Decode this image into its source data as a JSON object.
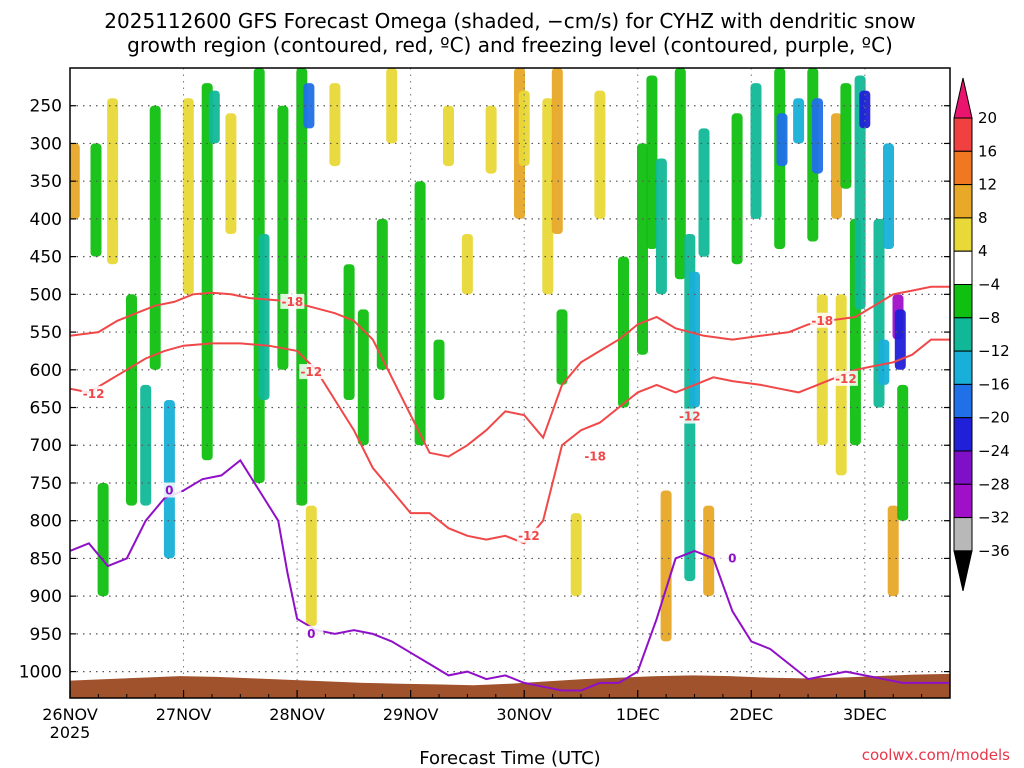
{
  "chart_data": {
    "type": "heatmap",
    "title_line1": "2025112600 GFS Forecast Omega (shaded, −cm/s) for CYHZ with dendritic snow",
    "title_line2": "growth region (contoured, red, ºC) and freezing level (contoured, purple, ºC)",
    "xlabel": "Forecast Time (UTC)",
    "credit": "coolwx.com/models",
    "x_ticks": [
      {
        "label": "26NOV",
        "sub": "2025",
        "hour": 0
      },
      {
        "label": "27NOV",
        "sub": "",
        "hour": 24
      },
      {
        "label": "28NOV",
        "sub": "",
        "hour": 48
      },
      {
        "label": "29NOV",
        "sub": "",
        "hour": 72
      },
      {
        "label": "30NOV",
        "sub": "",
        "hour": 96
      },
      {
        "label": "1DEC",
        "sub": "",
        "hour": 120
      },
      {
        "label": "2DEC",
        "sub": "",
        "hour": 144
      },
      {
        "label": "3DEC",
        "sub": "",
        "hour": 168
      }
    ],
    "x_range_hours": [
      0,
      186
    ],
    "y_ticks": [
      "250",
      "300",
      "350",
      "400",
      "450",
      "500",
      "550",
      "600",
      "650",
      "700",
      "750",
      "800",
      "850",
      "900",
      "950",
      "1000"
    ],
    "y_range_hpa": [
      200,
      1035
    ],
    "colorbar": {
      "labels": [
        "20",
        "16",
        "12",
        "8",
        "4",
        "−4",
        "−8",
        "−12",
        "−16",
        "−20",
        "−24",
        "−28",
        "−32",
        "−36"
      ],
      "colors": [
        "#e8146e",
        "#f04040",
        "#f07820",
        "#e8a828",
        "#e8d838",
        "#ffffff",
        "#10c010",
        "#10b898",
        "#18b0d8",
        "#2070e8",
        "#2020d8",
        "#8010c8",
        "#a010c8",
        "#b8b8b8",
        "#000000"
      ]
    },
    "omega_blobs": [
      {
        "h": 0.9,
        "p0": 300,
        "p1": 400,
        "v": 8
      },
      {
        "h": 5.5,
        "p0": 300,
        "p1": 450,
        "v": -8
      },
      {
        "h": 7,
        "p0": 750,
        "p1": 900,
        "v": -8
      },
      {
        "h": 9,
        "p0": 240,
        "p1": 460,
        "v": 4
      },
      {
        "h": 13,
        "p0": 500,
        "p1": 780,
        "v": -8
      },
      {
        "h": 16,
        "p0": 620,
        "p1": 780,
        "v": -12
      },
      {
        "h": 18,
        "p0": 250,
        "p1": 600,
        "v": -8
      },
      {
        "h": 21,
        "p0": 640,
        "p1": 850,
        "v": -16
      },
      {
        "h": 25,
        "p0": 240,
        "p1": 500,
        "v": 4
      },
      {
        "h": 29,
        "p0": 220,
        "p1": 720,
        "v": -8
      },
      {
        "h": 30.5,
        "p0": 230,
        "p1": 300,
        "v": -12
      },
      {
        "h": 34,
        "p0": 260,
        "p1": 420,
        "v": 4
      },
      {
        "h": 40,
        "p0": 200,
        "p1": 750,
        "v": -8
      },
      {
        "h": 41,
        "p0": 420,
        "p1": 640,
        "v": -12
      },
      {
        "h": 45,
        "p0": 250,
        "p1": 600,
        "v": -8
      },
      {
        "h": 49,
        "p0": 200,
        "p1": 780,
        "v": -8
      },
      {
        "h": 50.5,
        "p0": 220,
        "p1": 280,
        "v": -20
      },
      {
        "h": 51,
        "p0": 780,
        "p1": 940,
        "v": 4
      },
      {
        "h": 56,
        "p0": 220,
        "p1": 330,
        "v": 4
      },
      {
        "h": 59,
        "p0": 460,
        "p1": 640,
        "v": -8
      },
      {
        "h": 62,
        "p0": 520,
        "p1": 700,
        "v": -8
      },
      {
        "h": 66,
        "p0": 400,
        "p1": 600,
        "v": -8
      },
      {
        "h": 68,
        "p0": 200,
        "p1": 300,
        "v": 4
      },
      {
        "h": 74,
        "p0": 350,
        "p1": 700,
        "v": -8
      },
      {
        "h": 78,
        "p0": 560,
        "p1": 640,
        "v": -8
      },
      {
        "h": 80,
        "p0": 250,
        "p1": 330,
        "v": 4
      },
      {
        "h": 84,
        "p0": 420,
        "p1": 500,
        "v": 4
      },
      {
        "h": 89,
        "p0": 250,
        "p1": 340,
        "v": 4
      },
      {
        "h": 95,
        "p0": 200,
        "p1": 400,
        "v": 8
      },
      {
        "h": 96,
        "p0": 230,
        "p1": 330,
        "v": 4
      },
      {
        "h": 101,
        "p0": 240,
        "p1": 500,
        "v": 4
      },
      {
        "h": 103,
        "p0": 200,
        "p1": 420,
        "v": 8
      },
      {
        "h": 104,
        "p0": 520,
        "p1": 620,
        "v": -8
      },
      {
        "h": 107,
        "p0": 790,
        "p1": 900,
        "v": 4
      },
      {
        "h": 112,
        "p0": 230,
        "p1": 400,
        "v": 4
      },
      {
        "h": 117,
        "p0": 450,
        "p1": 650,
        "v": -8
      },
      {
        "h": 121,
        "p0": 300,
        "p1": 580,
        "v": -8
      },
      {
        "h": 123,
        "p0": 210,
        "p1": 440,
        "v": -8
      },
      {
        "h": 125,
        "p0": 320,
        "p1": 500,
        "v": -12
      },
      {
        "h": 126,
        "p0": 760,
        "p1": 960,
        "v": 8
      },
      {
        "h": 129,
        "p0": 200,
        "p1": 480,
        "v": -8
      },
      {
        "h": 131,
        "p0": 420,
        "p1": 880,
        "v": -12
      },
      {
        "h": 132,
        "p0": 470,
        "p1": 650,
        "v": -16
      },
      {
        "h": 134,
        "p0": 280,
        "p1": 450,
        "v": -12
      },
      {
        "h": 135,
        "p0": 780,
        "p1": 900,
        "v": 8
      },
      {
        "h": 141,
        "p0": 260,
        "p1": 460,
        "v": -8
      },
      {
        "h": 145,
        "p0": 220,
        "p1": 400,
        "v": -12
      },
      {
        "h": 150,
        "p0": 200,
        "p1": 440,
        "v": -8
      },
      {
        "h": 150.5,
        "p0": 260,
        "p1": 330,
        "v": -20
      },
      {
        "h": 154,
        "p0": 240,
        "p1": 300,
        "v": -16
      },
      {
        "h": 157,
        "p0": 200,
        "p1": 430,
        "v": -8
      },
      {
        "h": 158,
        "p0": 240,
        "p1": 340,
        "v": -20
      },
      {
        "h": 159,
        "p0": 500,
        "p1": 700,
        "v": 4
      },
      {
        "h": 162,
        "p0": 260,
        "p1": 400,
        "v": 8
      },
      {
        "h": 163,
        "p0": 500,
        "p1": 740,
        "v": 4
      },
      {
        "h": 164,
        "p0": 220,
        "p1": 360,
        "v": -8
      },
      {
        "h": 166,
        "p0": 400,
        "p1": 700,
        "v": -8
      },
      {
        "h": 167,
        "p0": 210,
        "p1": 520,
        "v": -12
      },
      {
        "h": 168,
        "p0": 230,
        "p1": 280,
        "v": -24
      },
      {
        "h": 171,
        "p0": 400,
        "p1": 650,
        "v": -12
      },
      {
        "h": 172,
        "p0": 560,
        "p1": 620,
        "v": -16
      },
      {
        "h": 173,
        "p0": 300,
        "p1": 440,
        "v": -16
      },
      {
        "h": 174,
        "p0": 780,
        "p1": 900,
        "v": 8
      },
      {
        "h": 175,
        "p0": 500,
        "p1": 560,
        "v": -32
      },
      {
        "h": 175.5,
        "p0": 520,
        "p1": 600,
        "v": -24
      },
      {
        "h": 176,
        "p0": 620,
        "p1": 800,
        "v": -8
      }
    ],
    "dgz_series": [
      {
        "name": "-18",
        "color": "#f04848",
        "label_x": [
          47,
          111,
          159
        ],
        "label_p": [
          510,
          715,
          535
        ],
        "points": [
          [
            0,
            555
          ],
          [
            6,
            550
          ],
          [
            10,
            535
          ],
          [
            14,
            525
          ],
          [
            18,
            515
          ],
          [
            22,
            510
          ],
          [
            26,
            500
          ],
          [
            30,
            498
          ],
          [
            34,
            500
          ],
          [
            38,
            505
          ],
          [
            44,
            508
          ],
          [
            50,
            515
          ],
          [
            56,
            525
          ],
          [
            60,
            535
          ],
          [
            64,
            560
          ],
          [
            68,
            610
          ],
          [
            72,
            660
          ],
          [
            76,
            710
          ],
          [
            80,
            715
          ],
          [
            84,
            700
          ],
          [
            88,
            680
          ],
          [
            92,
            655
          ],
          [
            96,
            660
          ],
          [
            100,
            690
          ],
          [
            104,
            620
          ],
          [
            108,
            590
          ],
          [
            112,
            575
          ],
          [
            116,
            560
          ],
          [
            120,
            540
          ],
          [
            124,
            530
          ],
          [
            128,
            545
          ],
          [
            134,
            555
          ],
          [
            140,
            560
          ],
          [
            146,
            555
          ],
          [
            152,
            550
          ],
          [
            156,
            540
          ],
          [
            160,
            535
          ],
          [
            166,
            530
          ],
          [
            170,
            515
          ],
          [
            174,
            500
          ],
          [
            178,
            495
          ],
          [
            182,
            490
          ],
          [
            186,
            490
          ]
        ]
      },
      {
        "name": "-12",
        "color": "#f04848",
        "label_x": [
          5,
          51,
          97,
          131,
          164
        ],
        "label_p": [
          632,
          603,
          820,
          662,
          612
        ],
        "points": [
          [
            0,
            625
          ],
          [
            4,
            630
          ],
          [
            8,
            615
          ],
          [
            12,
            600
          ],
          [
            16,
            585
          ],
          [
            20,
            575
          ],
          [
            24,
            568
          ],
          [
            30,
            565
          ],
          [
            36,
            565
          ],
          [
            42,
            568
          ],
          [
            48,
            575
          ],
          [
            52,
            600
          ],
          [
            56,
            640
          ],
          [
            60,
            680
          ],
          [
            64,
            730
          ],
          [
            68,
            760
          ],
          [
            72,
            790
          ],
          [
            76,
            790
          ],
          [
            80,
            810
          ],
          [
            84,
            820
          ],
          [
            88,
            825
          ],
          [
            92,
            820
          ],
          [
            96,
            830
          ],
          [
            100,
            800
          ],
          [
            104,
            700
          ],
          [
            108,
            680
          ],
          [
            112,
            670
          ],
          [
            116,
            650
          ],
          [
            120,
            630
          ],
          [
            124,
            620
          ],
          [
            128,
            630
          ],
          [
            132,
            620
          ],
          [
            136,
            610
          ],
          [
            140,
            615
          ],
          [
            146,
            620
          ],
          [
            150,
            625
          ],
          [
            154,
            630
          ],
          [
            158,
            620
          ],
          [
            162,
            610
          ],
          [
            166,
            600
          ],
          [
            170,
            595
          ],
          [
            174,
            590
          ],
          [
            178,
            580
          ],
          [
            182,
            560
          ],
          [
            186,
            560
          ]
        ]
      }
    ],
    "freezing_series": [
      {
        "name": "0",
        "color": "#9010c8",
        "label_x": [
          21,
          51,
          140
        ],
        "label_p": [
          760,
          950,
          850
        ],
        "points": [
          [
            0,
            840
          ],
          [
            4,
            830
          ],
          [
            8,
            860
          ],
          [
            12,
            850
          ],
          [
            16,
            800
          ],
          [
            20,
            770
          ],
          [
            24,
            760
          ],
          [
            28,
            745
          ],
          [
            32,
            740
          ],
          [
            36,
            720
          ],
          [
            40,
            760
          ],
          [
            44,
            800
          ],
          [
            46,
            870
          ],
          [
            48,
            930
          ],
          [
            52,
            945
          ],
          [
            56,
            950
          ],
          [
            60,
            945
          ],
          [
            64,
            950
          ],
          [
            68,
            960
          ],
          [
            72,
            975
          ],
          [
            76,
            990
          ],
          [
            80,
            1005
          ],
          [
            84,
            1000
          ],
          [
            88,
            1010
          ],
          [
            92,
            1005
          ],
          [
            96,
            1015
          ],
          [
            100,
            1020
          ],
          [
            104,
            1025
          ],
          [
            108,
            1025
          ],
          [
            112,
            1015
          ],
          [
            116,
            1015
          ],
          [
            120,
            1000
          ],
          [
            124,
            930
          ],
          [
            128,
            850
          ],
          [
            132,
            840
          ],
          [
            136,
            850
          ],
          [
            140,
            920
          ],
          [
            144,
            960
          ],
          [
            148,
            970
          ],
          [
            152,
            990
          ],
          [
            156,
            1010
          ],
          [
            160,
            1005
          ],
          [
            164,
            1000
          ],
          [
            168,
            1005
          ],
          [
            172,
            1010
          ],
          [
            176,
            1015
          ],
          [
            180,
            1015
          ],
          [
            186,
            1015
          ]
        ]
      }
    ],
    "surface": {
      "color": "#a0522d",
      "pressures": [
        1012,
        1010,
        1008,
        1006,
        1007,
        1009,
        1011,
        1013,
        1015,
        1016,
        1017,
        1018,
        1016,
        1013,
        1010,
        1008,
        1006,
        1005,
        1006,
        1008,
        1009,
        1008,
        1006,
        1004,
        1003
      ]
    }
  }
}
